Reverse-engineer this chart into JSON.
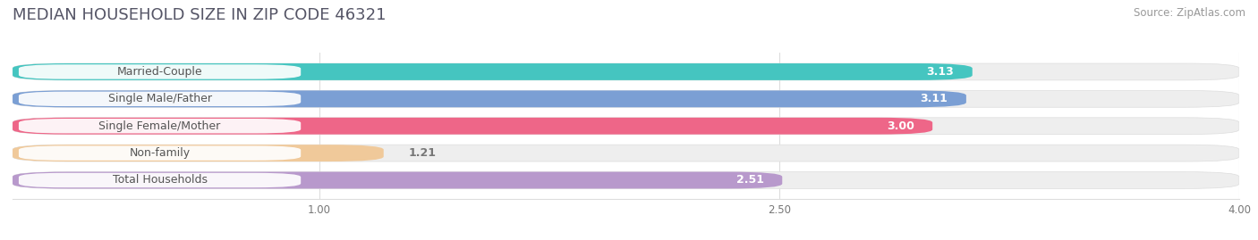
{
  "title": "MEDIAN HOUSEHOLD SIZE IN ZIP CODE 46321",
  "source": "Source: ZipAtlas.com",
  "categories": [
    "Married-Couple",
    "Single Male/Father",
    "Single Female/Mother",
    "Non-family",
    "Total Households"
  ],
  "values": [
    3.13,
    3.11,
    3.0,
    1.21,
    2.51
  ],
  "bar_colors": [
    "#45c5c0",
    "#7b9fd4",
    "#ee6688",
    "#f0c99a",
    "#b899cc"
  ],
  "xlim": [
    0.0,
    4.0
  ],
  "xticks": [
    1.0,
    2.5,
    4.0
  ],
  "bar_height": 0.62,
  "background_color": "#ffffff",
  "bar_bg_color": "#eeeeee",
  "title_fontsize": 13,
  "label_fontsize": 9,
  "value_fontsize": 9,
  "source_fontsize": 8.5
}
